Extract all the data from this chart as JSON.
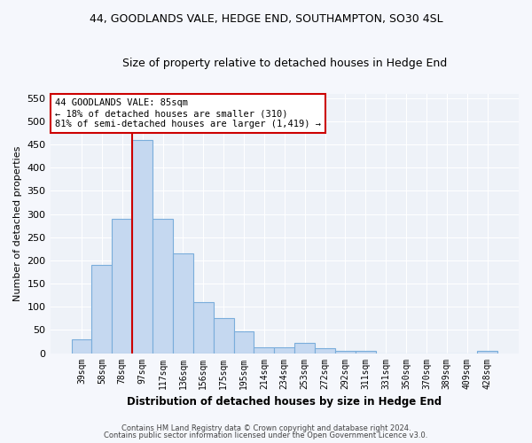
{
  "title": "44, GOODLANDS VALE, HEDGE END, SOUTHAMPTON, SO30 4SL",
  "subtitle": "Size of property relative to detached houses in Hedge End",
  "xlabel": "Distribution of detached houses by size in Hedge End",
  "ylabel": "Number of detached properties",
  "bar_color": "#c5d8f0",
  "bar_edge_color": "#7aaddb",
  "background_color": "#eef2f8",
  "grid_color": "#ffffff",
  "categories": [
    "39sqm",
    "58sqm",
    "78sqm",
    "97sqm",
    "117sqm",
    "136sqm",
    "156sqm",
    "175sqm",
    "195sqm",
    "214sqm",
    "234sqm",
    "253sqm",
    "272sqm",
    "292sqm",
    "311sqm",
    "331sqm",
    "350sqm",
    "370sqm",
    "389sqm",
    "409sqm",
    "428sqm"
  ],
  "values": [
    30,
    190,
    290,
    460,
    290,
    215,
    110,
    75,
    47,
    13,
    12,
    22,
    10,
    5,
    5,
    0,
    0,
    0,
    0,
    0,
    5
  ],
  "ylim": [
    0,
    560
  ],
  "yticks": [
    0,
    50,
    100,
    150,
    200,
    250,
    300,
    350,
    400,
    450,
    500,
    550
  ],
  "vline_color": "#cc0000",
  "annotation_text": "44 GOODLANDS VALE: 85sqm\n← 18% of detached houses are smaller (310)\n81% of semi-detached houses are larger (1,419) →",
  "annotation_box_color": "#ffffff",
  "annotation_box_edge": "#cc0000",
  "footer_line1": "Contains HM Land Registry data © Crown copyright and database right 2024.",
  "footer_line2": "Contains public sector information licensed under the Open Government Licence v3.0.",
  "figsize": [
    6.0,
    5.0
  ],
  "dpi": 100
}
